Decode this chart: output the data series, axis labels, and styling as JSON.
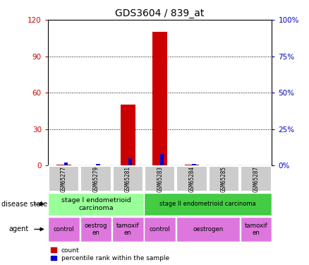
{
  "title": "GDS3604 / 839_at",
  "samples": [
    "GSM65277",
    "GSM65279",
    "GSM65281",
    "GSM65283",
    "GSM65284",
    "GSM65285",
    "GSM65287"
  ],
  "count_values": [
    1,
    0,
    50,
    110,
    1,
    0,
    0
  ],
  "percentile_values": [
    2,
    1,
    5,
    8,
    1,
    0,
    0
  ],
  "ylim_left": [
    0,
    120
  ],
  "ylim_right": [
    0,
    100
  ],
  "yticks_left": [
    0,
    30,
    60,
    90,
    120
  ],
  "ytick_labels_left": [
    "0",
    "30",
    "60",
    "90",
    "120"
  ],
  "yticks_right": [
    0,
    25,
    50,
    75,
    100
  ],
  "ytick_labels_right": [
    "0%",
    "25%",
    "50%",
    "75%",
    "100%"
  ],
  "count_color": "#cc0000",
  "percentile_color": "#0000cc",
  "stage1_color": "#99ff99",
  "stage2_color": "#44cc44",
  "agent_color": "#dd77dd",
  "sample_box_color": "#cccccc",
  "disease_label": "disease state",
  "agent_label": "agent",
  "stage1_text": "stage I endometrioid\ncarcinoma",
  "stage1_cols": [
    0,
    1,
    2
  ],
  "stage2_text": "stage II endometrioid carcinoma",
  "stage2_cols": [
    3,
    4,
    5,
    6
  ],
  "agent_groups": [
    {
      "label": "control",
      "cols": [
        0
      ]
    },
    {
      "label": "oestrog\nen",
      "cols": [
        1
      ]
    },
    {
      "label": "tamoxif\nen",
      "cols": [
        2
      ]
    },
    {
      "label": "control",
      "cols": [
        3
      ]
    },
    {
      "label": "oestrogen",
      "cols": [
        4,
        5
      ]
    },
    {
      "label": "tamoxif\nen",
      "cols": [
        6
      ]
    }
  ],
  "legend_count": "count",
  "legend_pct": "percentile rank within the sample"
}
